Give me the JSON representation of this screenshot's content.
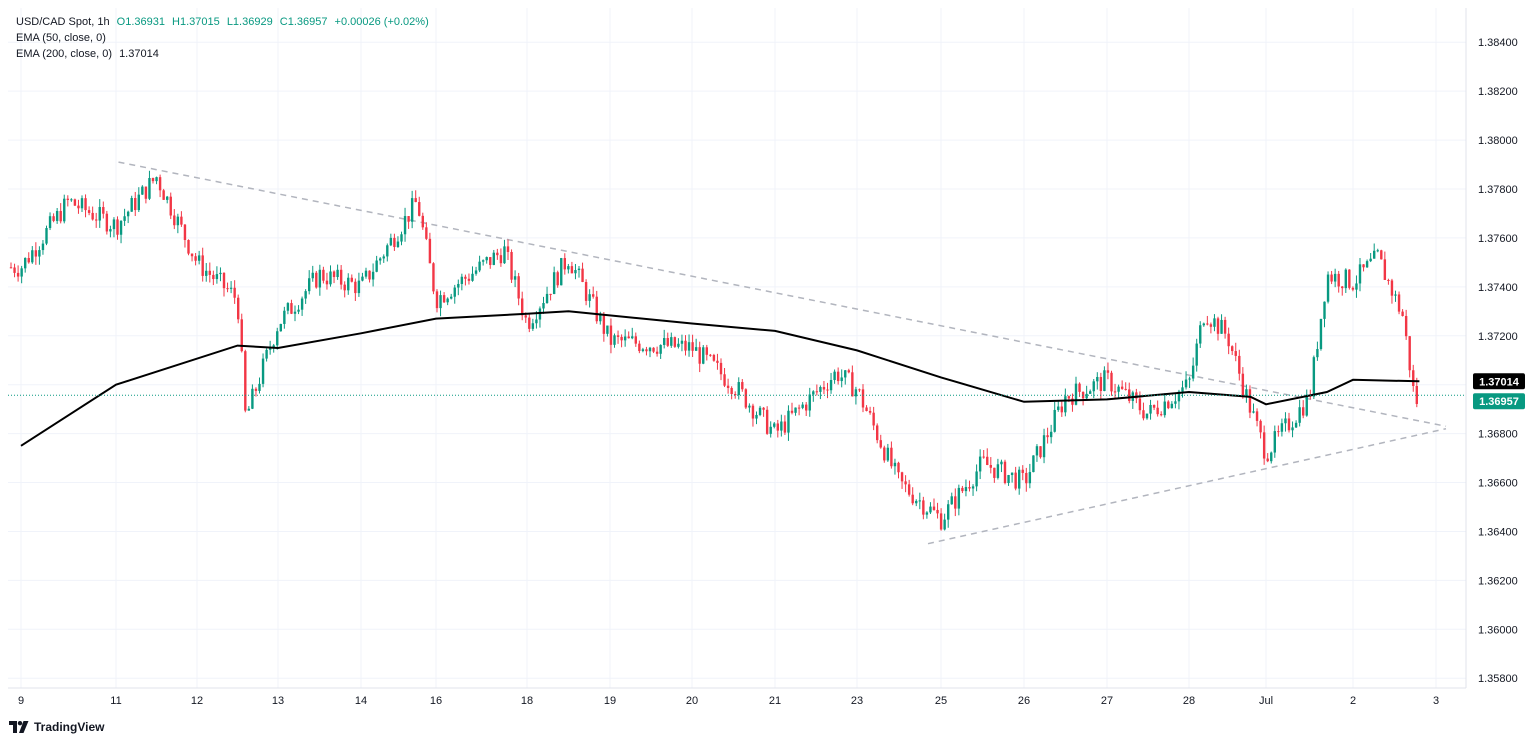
{
  "legend": {
    "symbol": "USD/CAD Spot",
    "interval": "1h",
    "open": "O1.36931",
    "high": "H1.37015",
    "low": "L1.36929",
    "close": "C1.36957",
    "change": "+0.00026 (+0.02%)",
    "ema50": "EMA (50, close, 0)",
    "ema200": "EMA (200, close, 0)",
    "ema200_value": "1.37014"
  },
  "branding": {
    "name": "TradingView"
  },
  "colors": {
    "up": "#089981",
    "down": "#f23645",
    "ema200": "#000000",
    "trendline": "#b2b5be",
    "grid": "#f0f3fa",
    "price_tag": "#089981",
    "ema_tag": "#000000"
  },
  "chart_data": {
    "type": "candlestick",
    "x_ticks": [
      "9",
      "11",
      "12",
      "13",
      "14",
      "16",
      "18",
      "19",
      "20",
      "21",
      "23",
      "25",
      "26",
      "27",
      "28",
      "Jul",
      "2",
      "3"
    ],
    "y_ticks": [
      "1.38400",
      "1.38200",
      "1.38000",
      "1.37800",
      "1.37600",
      "1.37400",
      "1.37200",
      "1.37000",
      "1.36800",
      "1.36600",
      "1.36400",
      "1.36200",
      "1.36000",
      "1.35800"
    ],
    "ylim": [
      1.3576,
      1.3854
    ],
    "grid": true,
    "current_price": 1.36957,
    "current_price_label": "1.36957",
    "ema200_last": 1.37014,
    "ema200_label": "1.37014",
    "price_path": [
      {
        "x": "9",
        "y": 1.3748
      },
      {
        "x": "10",
        "y": 1.3775
      },
      {
        "x": "11",
        "y": 1.3765
      },
      {
        "x": "11.5",
        "y": 1.3785
      },
      {
        "x": "12",
        "y": 1.375
      },
      {
        "x": "12.5",
        "y": 1.3735
      },
      {
        "x": "12.6",
        "y": 1.3686
      },
      {
        "x": "13",
        "y": 1.3725
      },
      {
        "x": "13.5",
        "y": 1.3745
      },
      {
        "x": "14",
        "y": 1.374
      },
      {
        "x": "15.5",
        "y": 1.3775
      },
      {
        "x": "16",
        "y": 1.3735
      },
      {
        "x": "17.5",
        "y": 1.3755
      },
      {
        "x": "18",
        "y": 1.3725
      },
      {
        "x": "18.5",
        "y": 1.3752
      },
      {
        "x": "19",
        "y": 1.3718
      },
      {
        "x": "20",
        "y": 1.3715
      },
      {
        "x": "20.5",
        "y": 1.37
      },
      {
        "x": "21",
        "y": 1.368
      },
      {
        "x": "22.5",
        "y": 1.3705
      },
      {
        "x": "23",
        "y": 1.3698
      },
      {
        "x": "24",
        "y": 1.366
      },
      {
        "x": "25",
        "y": 1.3645
      },
      {
        "x": "25.5",
        "y": 1.3668
      },
      {
        "x": "26",
        "y": 1.366
      },
      {
        "x": "26.5",
        "y": 1.3695
      },
      {
        "x": "27",
        "y": 1.3702
      },
      {
        "x": "27.5",
        "y": 1.3688
      },
      {
        "x": "28",
        "y": 1.37
      },
      {
        "x": "28.2",
        "y": 1.373
      },
      {
        "x": "28.5",
        "y": 1.372
      },
      {
        "x": "28.8",
        "y": 1.369
      },
      {
        "x": "Jul",
        "y": 1.3672
      },
      {
        "x": "Jul.5",
        "y": 1.3695
      },
      {
        "x": "Jul.7",
        "y": 1.3745
      },
      {
        "x": "2",
        "y": 1.3742
      },
      {
        "x": "2.3",
        "y": 1.3752
      },
      {
        "x": "2.6",
        "y": 1.3728
      },
      {
        "x": "2.75",
        "y": 1.3692
      },
      {
        "x": "2.8",
        "y": 1.36957
      }
    ],
    "ema200_path": [
      {
        "x": "9",
        "y": 1.3675
      },
      {
        "x": "11",
        "y": 1.37
      },
      {
        "x": "12.5",
        "y": 1.3716
      },
      {
        "x": "13",
        "y": 1.3715
      },
      {
        "x": "14",
        "y": 1.3721
      },
      {
        "x": "16",
        "y": 1.3727
      },
      {
        "x": "18",
        "y": 1.3729
      },
      {
        "x": "18.5",
        "y": 1.373
      },
      {
        "x": "20",
        "y": 1.3725
      },
      {
        "x": "21",
        "y": 1.3722
      },
      {
        "x": "23",
        "y": 1.3714
      },
      {
        "x": "25",
        "y": 1.3703
      },
      {
        "x": "26",
        "y": 1.3693
      },
      {
        "x": "27",
        "y": 1.3694
      },
      {
        "x": "28",
        "y": 1.3697
      },
      {
        "x": "28.8",
        "y": 1.3695
      },
      {
        "x": "Jul",
        "y": 1.3692
      },
      {
        "x": "Jul.7",
        "y": 1.3697
      },
      {
        "x": "2",
        "y": 1.3702
      },
      {
        "x": "2.8",
        "y": 1.37014
      }
    ],
    "trendlines": [
      {
        "from": {
          "x": "10",
          "y": 1.3791
        },
        "to": {
          "x": "3",
          "y": 1.3683
        }
      },
      {
        "from": {
          "x": "23.5",
          "y": 1.3635
        },
        "to": {
          "x": "3",
          "y": 1.3682
        }
      }
    ]
  }
}
